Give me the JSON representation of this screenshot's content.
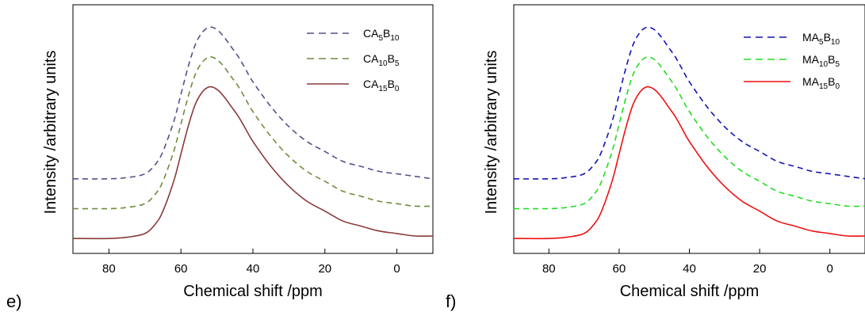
{
  "panel_labels": [
    "e)",
    "f)"
  ],
  "chart_data": [
    {
      "type": "line",
      "panel_label": "e)",
      "xlabel": "Chemical shift /ppm",
      "ylabel": "Intensity /arbitrary units",
      "x_reversed": true,
      "xlim": [
        90,
        -10
      ],
      "ylim": [
        0,
        1.0
      ],
      "xticks": [
        80,
        60,
        40,
        20,
        0
      ],
      "yticks": [],
      "grid": false,
      "legend_position": "top-right",
      "series": [
        {
          "name": "CA5B10",
          "label_main": "CA",
          "sub1": "5",
          "label_mid": "B",
          "sub2": "10",
          "color": "#5a4f8c",
          "dash": "dashed",
          "x": [
            90,
            80,
            75,
            70,
            67,
            65,
            62,
            60,
            58,
            56,
            54,
            52,
            50,
            48,
            46,
            44,
            42,
            40,
            35,
            30,
            25,
            20,
            15,
            10,
            5,
            0,
            -5,
            -10
          ],
          "y": [
            0.3,
            0.3,
            0.305,
            0.32,
            0.36,
            0.41,
            0.53,
            0.64,
            0.75,
            0.84,
            0.89,
            0.91,
            0.9,
            0.87,
            0.83,
            0.79,
            0.74,
            0.69,
            0.59,
            0.51,
            0.45,
            0.41,
            0.37,
            0.35,
            0.33,
            0.32,
            0.31,
            0.3
          ]
        },
        {
          "name": "CA10B5",
          "label_main": "CA",
          "sub1": "10",
          "label_mid": "B",
          "sub2": "5",
          "color": "#6f8c3c",
          "dash": "dashed",
          "x": [
            90,
            80,
            75,
            70,
            67,
            65,
            62,
            60,
            58,
            56,
            54,
            52,
            50,
            48,
            46,
            44,
            42,
            40,
            35,
            30,
            25,
            20,
            15,
            10,
            5,
            0,
            -5,
            -10
          ],
          "y": [
            0.18,
            0.18,
            0.185,
            0.2,
            0.24,
            0.29,
            0.41,
            0.52,
            0.63,
            0.72,
            0.77,
            0.79,
            0.78,
            0.75,
            0.71,
            0.67,
            0.62,
            0.57,
            0.47,
            0.39,
            0.33,
            0.29,
            0.25,
            0.23,
            0.21,
            0.2,
            0.19,
            0.19
          ]
        },
        {
          "name": "CA15B0",
          "label_main": "CA",
          "sub1": "15",
          "label_mid": "B",
          "sub2": "0",
          "color": "#8b3a3a",
          "dash": "solid",
          "x": [
            90,
            80,
            75,
            70,
            67,
            65,
            62,
            60,
            58,
            56,
            54,
            52,
            50,
            48,
            46,
            44,
            42,
            40,
            35,
            30,
            25,
            20,
            15,
            10,
            5,
            0,
            -5,
            -10
          ],
          "y": [
            0.06,
            0.06,
            0.065,
            0.08,
            0.12,
            0.17,
            0.29,
            0.4,
            0.51,
            0.6,
            0.65,
            0.67,
            0.66,
            0.63,
            0.59,
            0.55,
            0.5,
            0.45,
            0.35,
            0.27,
            0.21,
            0.17,
            0.13,
            0.11,
            0.09,
            0.08,
            0.07,
            0.07
          ]
        }
      ]
    },
    {
      "type": "line",
      "panel_label": "f)",
      "xlabel": "Chemical shift /ppm",
      "ylabel": "Intensity /arbitrary units",
      "x_reversed": true,
      "xlim": [
        90,
        -10
      ],
      "ylim": [
        0,
        1.0
      ],
      "xticks": [
        80,
        60,
        40,
        20,
        0
      ],
      "yticks": [],
      "grid": false,
      "legend_position": "top-right",
      "series": [
        {
          "name": "MA5B10",
          "label_main": "MA",
          "sub1": "5",
          "label_mid": "B",
          "sub2": "10",
          "color": "#1414b4",
          "dash": "dashed",
          "x": [
            90,
            80,
            75,
            70,
            67,
            65,
            62,
            60,
            58,
            56,
            54,
            52,
            50,
            48,
            46,
            44,
            42,
            40,
            35,
            30,
            25,
            20,
            15,
            10,
            5,
            0,
            -5,
            -10
          ],
          "y": [
            0.3,
            0.3,
            0.305,
            0.32,
            0.36,
            0.41,
            0.53,
            0.64,
            0.75,
            0.84,
            0.89,
            0.91,
            0.9,
            0.87,
            0.83,
            0.79,
            0.74,
            0.69,
            0.59,
            0.51,
            0.45,
            0.41,
            0.37,
            0.35,
            0.33,
            0.32,
            0.31,
            0.3
          ]
        },
        {
          "name": "MA10B5",
          "label_main": "MA",
          "sub1": "10",
          "label_mid": "B",
          "sub2": "5",
          "color": "#22dd22",
          "dash": "dashed",
          "x": [
            90,
            80,
            75,
            70,
            67,
            65,
            62,
            60,
            58,
            56,
            54,
            52,
            50,
            48,
            46,
            44,
            42,
            40,
            35,
            30,
            25,
            20,
            15,
            10,
            5,
            0,
            -5,
            -10
          ],
          "y": [
            0.18,
            0.18,
            0.185,
            0.2,
            0.24,
            0.29,
            0.41,
            0.52,
            0.63,
            0.72,
            0.77,
            0.79,
            0.78,
            0.75,
            0.71,
            0.67,
            0.62,
            0.57,
            0.47,
            0.39,
            0.33,
            0.29,
            0.25,
            0.23,
            0.21,
            0.2,
            0.19,
            0.19
          ]
        },
        {
          "name": "MA15B0",
          "label_main": "MA",
          "sub1": "15",
          "label_mid": "B",
          "sub2": "0",
          "color": "#ee1111",
          "dash": "solid",
          "x": [
            90,
            80,
            75,
            70,
            67,
            65,
            62,
            60,
            58,
            56,
            54,
            52,
            50,
            48,
            46,
            44,
            42,
            40,
            35,
            30,
            25,
            20,
            15,
            10,
            5,
            0,
            -5,
            -10
          ],
          "y": [
            0.06,
            0.06,
            0.065,
            0.08,
            0.12,
            0.17,
            0.29,
            0.4,
            0.51,
            0.6,
            0.65,
            0.67,
            0.66,
            0.63,
            0.59,
            0.55,
            0.5,
            0.45,
            0.35,
            0.27,
            0.21,
            0.17,
            0.13,
            0.11,
            0.09,
            0.08,
            0.07,
            0.07
          ]
        }
      ]
    }
  ]
}
